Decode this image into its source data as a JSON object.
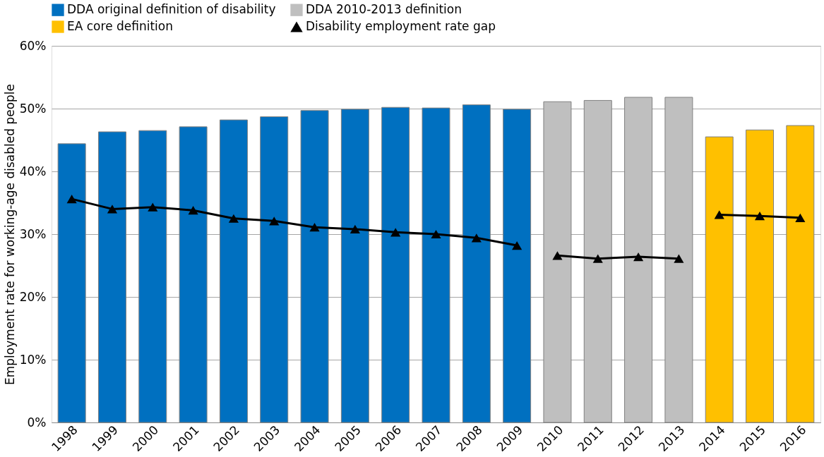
{
  "chart_data": {
    "type": "bar",
    "categories": [
      "1998",
      "1999",
      "2000",
      "2001",
      "2002",
      "2003",
      "2004",
      "2005",
      "2006",
      "2007",
      "2008",
      "2009",
      "2010",
      "2011",
      "2012",
      "2013",
      "2014",
      "2015",
      "2016"
    ],
    "ylabel": "Employment rate for working-age disabled people",
    "ylim": [
      0,
      60
    ],
    "yticks": [
      {
        "value": 0,
        "label": "0%"
      },
      {
        "value": 10,
        "label": "10%"
      },
      {
        "value": 20,
        "label": "20%"
      },
      {
        "value": 30,
        "label": "30%"
      },
      {
        "value": 40,
        "label": "40%"
      },
      {
        "value": 50,
        "label": "50%"
      },
      {
        "value": 60,
        "label": "60%"
      }
    ],
    "grid": "y",
    "legend": "top",
    "series": [
      {
        "name": "DDA original definition of disability",
        "color": "#0070c0",
        "values": [
          44.4,
          46.3,
          46.5,
          47.1,
          48.2,
          48.7,
          49.7,
          49.9,
          50.2,
          50.1,
          50.6,
          49.9,
          null,
          null,
          null,
          null,
          null,
          null,
          null
        ]
      },
      {
        "name": "DDA 2010-2013 definition",
        "color": "#bfbfbf",
        "values": [
          null,
          null,
          null,
          null,
          null,
          null,
          null,
          null,
          null,
          null,
          null,
          null,
          51.1,
          51.3,
          51.8,
          51.8,
          null,
          null,
          null
        ]
      },
      {
        "name": "EA core definition",
        "color": "#ffc000",
        "values": [
          null,
          null,
          null,
          null,
          null,
          null,
          null,
          null,
          null,
          null,
          null,
          null,
          null,
          null,
          null,
          null,
          45.5,
          46.6,
          47.3
        ]
      },
      {
        "name": "Disability employment rate gap",
        "type": "line",
        "color": "#000000",
        "marker": "triangle",
        "line_style": "solid",
        "values": [
          35.6,
          34.0,
          34.3,
          33.8,
          32.5,
          32.1,
          31.1,
          30.8,
          30.3,
          30.0,
          29.4,
          28.2,
          26.6,
          26.1,
          26.4,
          26.1,
          33.1,
          32.9,
          32.6
        ]
      }
    ]
  }
}
